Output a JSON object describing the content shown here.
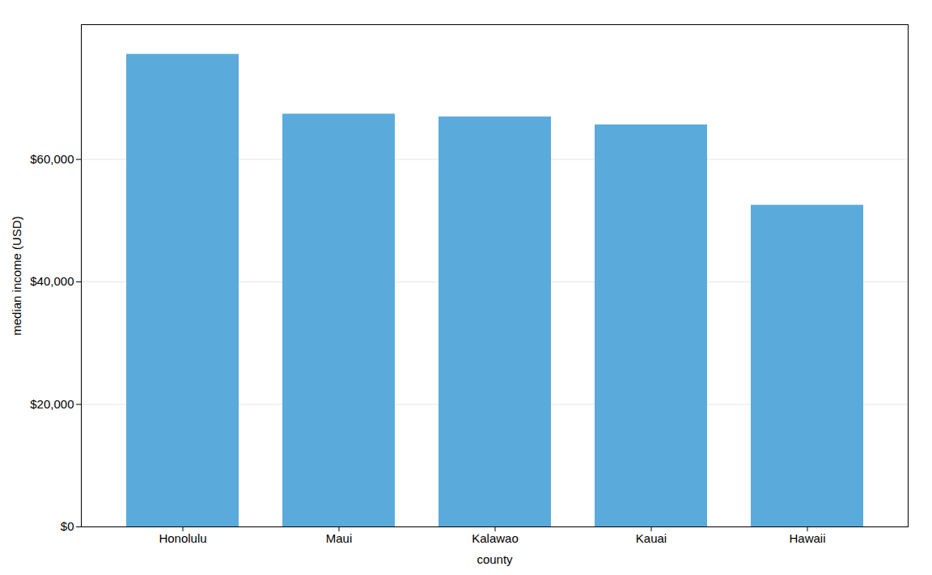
{
  "chart_data": {
    "type": "bar",
    "categories": [
      "Honolulu",
      "Maui",
      "Kalawao",
      "Kauai",
      "Hawaii"
    ],
    "values": [
      77161,
      67402,
      66937,
      65648,
      52522
    ],
    "color": "#5aabdc",
    "xlabel": "county",
    "ylabel": "median income (USD)",
    "ylim": [
      0,
      82000
    ],
    "yticks": [
      {
        "value": 0,
        "label": "$0"
      },
      {
        "value": 20000,
        "label": "$20,000"
      },
      {
        "value": 40000,
        "label": "$40,000"
      },
      {
        "value": 60000,
        "label": "$60,000"
      }
    ],
    "grid": true
  }
}
